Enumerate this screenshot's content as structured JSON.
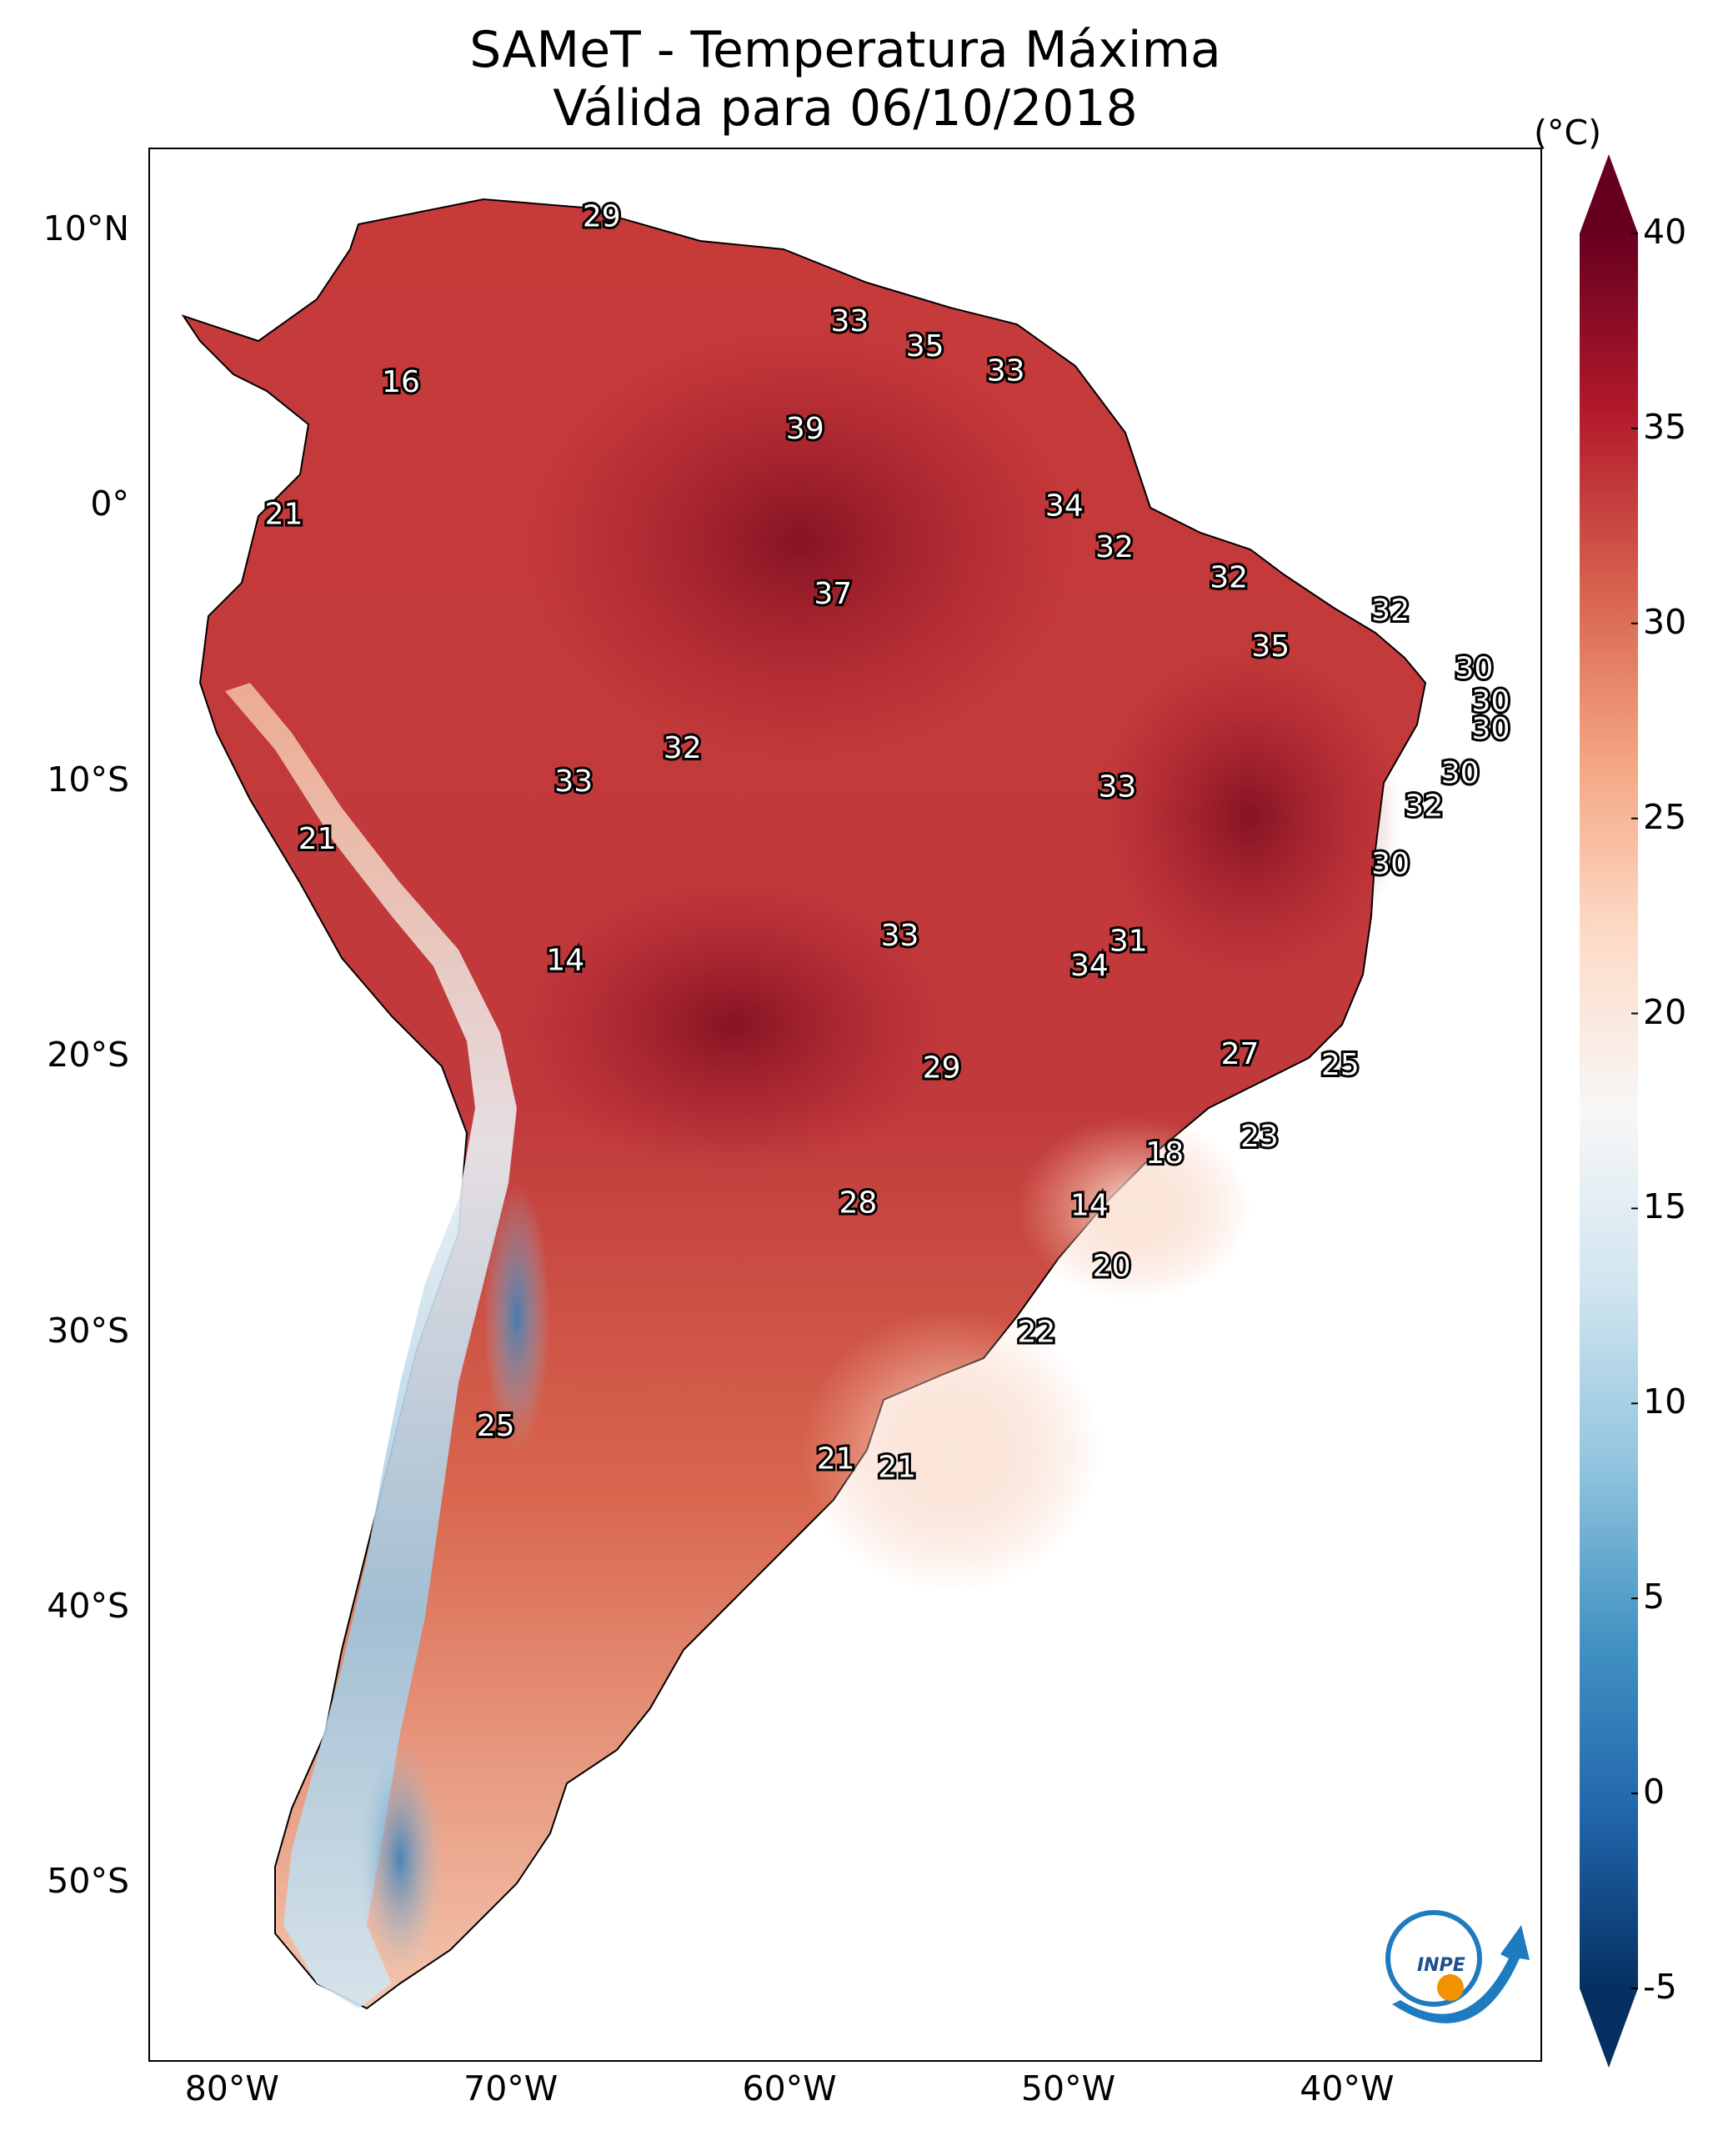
{
  "title": {
    "line1": "SAMeT - Temperatura Máxima",
    "line2": "Válida para 06/10/2018"
  },
  "axes": {
    "latitude_ticks": [
      {
        "deg": 10,
        "label": "10°N"
      },
      {
        "deg": 0,
        "label": "0°"
      },
      {
        "deg": -10,
        "label": "10°S"
      },
      {
        "deg": -20,
        "label": "20°S"
      },
      {
        "deg": -30,
        "label": "30°S"
      },
      {
        "deg": -40,
        "label": "40°S"
      },
      {
        "deg": -50,
        "label": "50°S"
      }
    ],
    "longitude_ticks": [
      {
        "deg": -80,
        "label": "80°W"
      },
      {
        "deg": -70,
        "label": "70°W"
      },
      {
        "deg": -60,
        "label": "60°W"
      },
      {
        "deg": -50,
        "label": "50°W"
      },
      {
        "deg": -40,
        "label": "40°W"
      }
    ],
    "lon_range": [
      -83,
      -33
    ],
    "lat_range": [
      -56.5,
      13
    ]
  },
  "colorbar": {
    "unit": "(°C)",
    "min": -5,
    "max": 40,
    "ticks": [
      {
        "value": 40,
        "label": "40"
      },
      {
        "value": 35,
        "label": "35"
      },
      {
        "value": 30,
        "label": "30"
      },
      {
        "value": 25,
        "label": "25"
      },
      {
        "value": 20,
        "label": "20"
      },
      {
        "value": 15,
        "label": "15"
      },
      {
        "value": 10,
        "label": "10"
      },
      {
        "value": 5,
        "label": "5"
      },
      {
        "value": 0,
        "label": "0"
      },
      {
        "value": -5,
        "label": "-5"
      }
    ],
    "colors": [
      "#053061",
      "#2166ac",
      "#4393c3",
      "#92c5de",
      "#d1e5f0",
      "#f7f7f7",
      "#fddbc7",
      "#f4a582",
      "#d6604d",
      "#b2182b",
      "#67001f"
    ]
  },
  "station_values": [
    {
      "lon": -66.8,
      "lat": 10.5,
      "label": "29"
    },
    {
      "lon": -74.0,
      "lat": 4.5,
      "label": "16"
    },
    {
      "lon": -57.9,
      "lat": 6.7,
      "label": "33"
    },
    {
      "lon": -55.2,
      "lat": 5.8,
      "label": "35"
    },
    {
      "lon": -52.3,
      "lat": 4.9,
      "label": "33"
    },
    {
      "lon": -59.5,
      "lat": 2.8,
      "label": "39"
    },
    {
      "lon": -78.2,
      "lat": -0.3,
      "label": "21"
    },
    {
      "lon": -50.2,
      "lat": 0.0,
      "label": "34"
    },
    {
      "lon": -48.4,
      "lat": -1.5,
      "label": "32"
    },
    {
      "lon": -44.3,
      "lat": -2.6,
      "label": "32"
    },
    {
      "lon": -58.5,
      "lat": -3.2,
      "label": "37"
    },
    {
      "lon": -38.5,
      "lat": -3.8,
      "label": "32"
    },
    {
      "lon": -42.8,
      "lat": -5.1,
      "label": "35"
    },
    {
      "lon": -35.5,
      "lat": -5.9,
      "label": "30"
    },
    {
      "lon": -34.9,
      "lat": -7.1,
      "label": "30"
    },
    {
      "lon": -34.9,
      "lat": -8.1,
      "label": "30"
    },
    {
      "lon": -36.0,
      "lat": -9.7,
      "label": "30"
    },
    {
      "lon": -37.3,
      "lat": -10.9,
      "label": "32"
    },
    {
      "lon": -63.9,
      "lat": -8.8,
      "label": "32"
    },
    {
      "lon": -67.8,
      "lat": -10.0,
      "label": "33"
    },
    {
      "lon": -48.3,
      "lat": -10.2,
      "label": "33"
    },
    {
      "lon": -77.0,
      "lat": -12.1,
      "label": "21"
    },
    {
      "lon": -38.5,
      "lat": -13.0,
      "label": "30"
    },
    {
      "lon": -56.1,
      "lat": -15.6,
      "label": "33"
    },
    {
      "lon": -47.9,
      "lat": -15.8,
      "label": "31"
    },
    {
      "lon": -49.3,
      "lat": -16.7,
      "label": "34"
    },
    {
      "lon": -68.1,
      "lat": -16.5,
      "label": "14"
    },
    {
      "lon": -43.9,
      "lat": -19.9,
      "label": "27"
    },
    {
      "lon": -40.3,
      "lat": -20.3,
      "label": "25"
    },
    {
      "lon": -54.6,
      "lat": -20.4,
      "label": "29"
    },
    {
      "lon": -43.2,
      "lat": -22.9,
      "label": "23"
    },
    {
      "lon": -46.6,
      "lat": -23.5,
      "label": "18"
    },
    {
      "lon": -57.6,
      "lat": -25.3,
      "label": "28"
    },
    {
      "lon": -49.3,
      "lat": -25.4,
      "label": "14"
    },
    {
      "lon": -48.5,
      "lat": -27.6,
      "label": "20"
    },
    {
      "lon": -51.2,
      "lat": -30.0,
      "label": "22"
    },
    {
      "lon": -70.6,
      "lat": -33.4,
      "label": "25"
    },
    {
      "lon": -58.4,
      "lat": -34.6,
      "label": "21"
    },
    {
      "lon": -56.2,
      "lat": -34.9,
      "label": "21"
    }
  ],
  "logo": {
    "text": "INPE"
  }
}
